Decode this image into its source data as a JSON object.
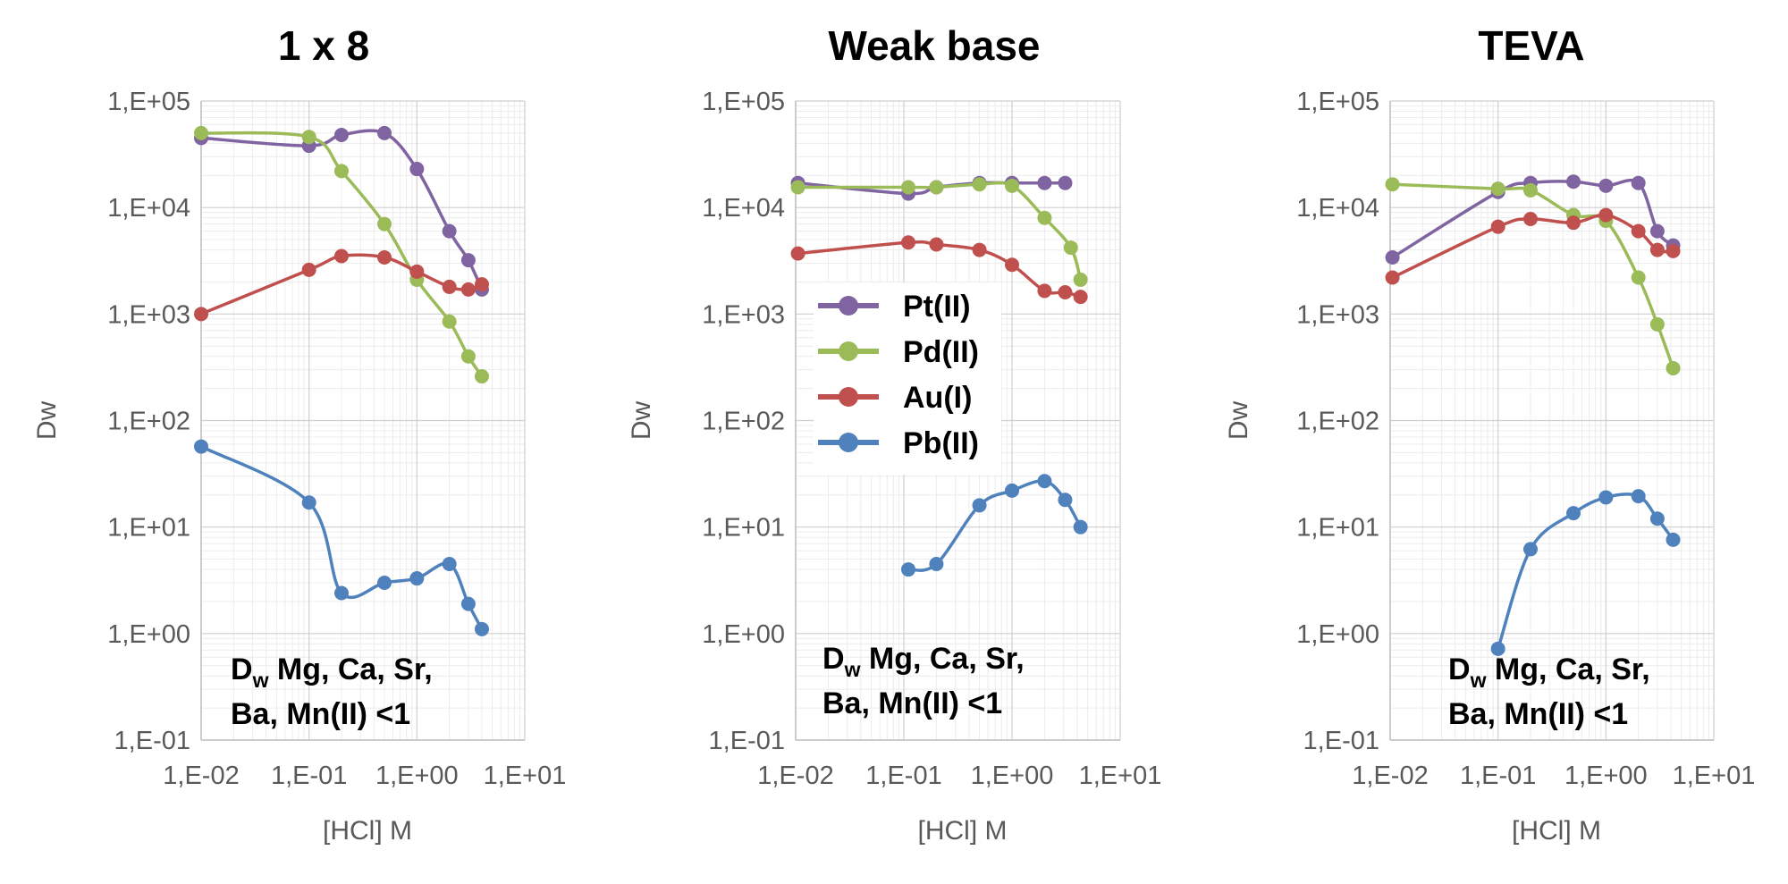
{
  "chart_data": [
    {
      "type": "line",
      "title": "1 x 8",
      "xlabel": "[HCl] M",
      "ylabel": "Dw",
      "x_scale": "log",
      "y_scale": "log",
      "xlim": [
        0.01,
        10
      ],
      "ylim": [
        0.1,
        100000
      ],
      "x_ticks": [
        "1,E-02",
        "1,E-01",
        "1,E+00",
        "1,E+01"
      ],
      "y_ticks": [
        "1,E-01",
        "1,E+00",
        "1,E+01",
        "1,E+02",
        "1,E+03",
        "1,E+04",
        "1,E+05"
      ],
      "grid": true,
      "note": {
        "line1_main": "D",
        "line1_sub": "w",
        "line1_rest": " Mg, Ca, Sr,",
        "line2": "Ba, Mn(II) <1"
      },
      "series": [
        {
          "name": "Pt(II)",
          "color": "#8064a2",
          "x": [
            0.01,
            0.1,
            0.2,
            0.5,
            1,
            2,
            3,
            4
          ],
          "y": [
            45000,
            38000,
            48000,
            50000,
            23000,
            6000,
            3200,
            1700
          ]
        },
        {
          "name": "Pd(II)",
          "color": "#9bbb59",
          "x": [
            0.01,
            0.1,
            0.2,
            0.5,
            1,
            2,
            3,
            4
          ],
          "y": [
            50000,
            46000,
            22000,
            7000,
            2100,
            850,
            400,
            260
          ]
        },
        {
          "name": "Au(I)",
          "color": "#c0504d",
          "x": [
            0.01,
            0.1,
            0.2,
            0.5,
            1,
            2,
            3,
            4
          ],
          "y": [
            1000,
            2600,
            3500,
            3400,
            2500,
            1800,
            1700,
            1900
          ]
        },
        {
          "name": "Pb(II)",
          "color": "#4f81bd",
          "x": [
            0.01,
            0.1,
            0.2,
            0.5,
            1,
            2,
            3,
            4
          ],
          "y": [
            57,
            17,
            2.4,
            3.0,
            3.3,
            4.5,
            1.9,
            1.1
          ]
        }
      ]
    },
    {
      "type": "line",
      "title": "Weak base",
      "xlabel": "[HCl] M",
      "ylabel": "Dw",
      "x_scale": "log",
      "y_scale": "log",
      "xlim": [
        0.01,
        10
      ],
      "ylim": [
        0.1,
        100000
      ],
      "x_ticks": [
        "1,E-02",
        "1,E-01",
        "1,E+00",
        "1,E+01"
      ],
      "y_ticks": [
        "1,E-01",
        "1,E+00",
        "1,E+01",
        "1,E+02",
        "1,E+03",
        "1,E+04",
        "1,E+05"
      ],
      "grid": true,
      "legend": {
        "position": "center-left",
        "entries": [
          "Pt(II)",
          "Pd(II)",
          "Au(I)",
          "Pb(II)"
        ]
      },
      "note": {
        "line1_main": "D",
        "line1_sub": "w",
        "line1_rest": " Mg, Ca, Sr,",
        "line2": "Ba, Mn(II) <1"
      },
      "series": [
        {
          "name": "Pt(II)",
          "color": "#8064a2",
          "x": [
            0.0105,
            0.11,
            0.2,
            0.5,
            1,
            2,
            3.1
          ],
          "y": [
            17000,
            13500,
            15500,
            17000,
            17000,
            17000,
            17000
          ]
        },
        {
          "name": "Pd(II)",
          "color": "#9bbb59",
          "x": [
            0.0105,
            0.11,
            0.2,
            0.5,
            1,
            2,
            3.5,
            4.3
          ],
          "y": [
            15500,
            15500,
            15500,
            16500,
            16000,
            8000,
            4200,
            2100
          ]
        },
        {
          "name": "Au(I)",
          "color": "#c0504d",
          "x": [
            0.0105,
            0.11,
            0.2,
            0.5,
            1,
            2,
            3.1,
            4.3
          ],
          "y": [
            3700,
            4700,
            4500,
            4000,
            2900,
            1650,
            1600,
            1450
          ]
        },
        {
          "name": "Pb(II)",
          "color": "#4f81bd",
          "x": [
            0.11,
            0.2,
            0.5,
            1,
            2,
            3.1,
            4.3
          ],
          "y": [
            4.0,
            4.5,
            16,
            22,
            27,
            18,
            10
          ]
        }
      ]
    },
    {
      "type": "line",
      "title": "TEVA",
      "xlabel": "[HCl] M",
      "ylabel": "Dw",
      "x_scale": "log",
      "y_scale": "log",
      "xlim": [
        0.01,
        10
      ],
      "ylim": [
        0.1,
        100000
      ],
      "x_ticks": [
        "1,E-02",
        "1,E-01",
        "1,E+00",
        "1,E+01"
      ],
      "y_ticks": [
        "1,E-01",
        "1,E+00",
        "1,E+01",
        "1,E+02",
        "1,E+03",
        "1,E+04",
        "1,E+05"
      ],
      "grid": true,
      "note": {
        "line1_main": "D",
        "line1_sub": "w",
        "line1_rest": " Mg, Ca, Sr,",
        "line2": "Ba, Mn(II) <1"
      },
      "series": [
        {
          "name": "Pt(II)",
          "color": "#8064a2",
          "x": [
            0.0105,
            0.1,
            0.2,
            0.5,
            1,
            2,
            3,
            4.2
          ],
          "y": [
            3400,
            14000,
            17000,
            17500,
            16000,
            17000,
            6000,
            4400
          ]
        },
        {
          "name": "Pd(II)",
          "color": "#9bbb59",
          "x": [
            0.0105,
            0.1,
            0.2,
            0.5,
            1,
            2,
            3,
            4.2
          ],
          "y": [
            16500,
            15000,
            14500,
            8500,
            7500,
            2200,
            800,
            310
          ]
        },
        {
          "name": "Au(I)",
          "color": "#c0504d",
          "x": [
            0.0105,
            0.1,
            0.2,
            0.5,
            1,
            2,
            3,
            4.2
          ],
          "y": [
            2200,
            6600,
            7800,
            7200,
            8500,
            6000,
            4000,
            3900
          ]
        },
        {
          "name": "Pb(II)",
          "color": "#4f81bd",
          "x": [
            0.1,
            0.2,
            0.5,
            1,
            2,
            3,
            4.2
          ],
          "y": [
            0.72,
            6.2,
            13.5,
            19,
            19.5,
            12,
            7.6
          ]
        }
      ]
    }
  ]
}
